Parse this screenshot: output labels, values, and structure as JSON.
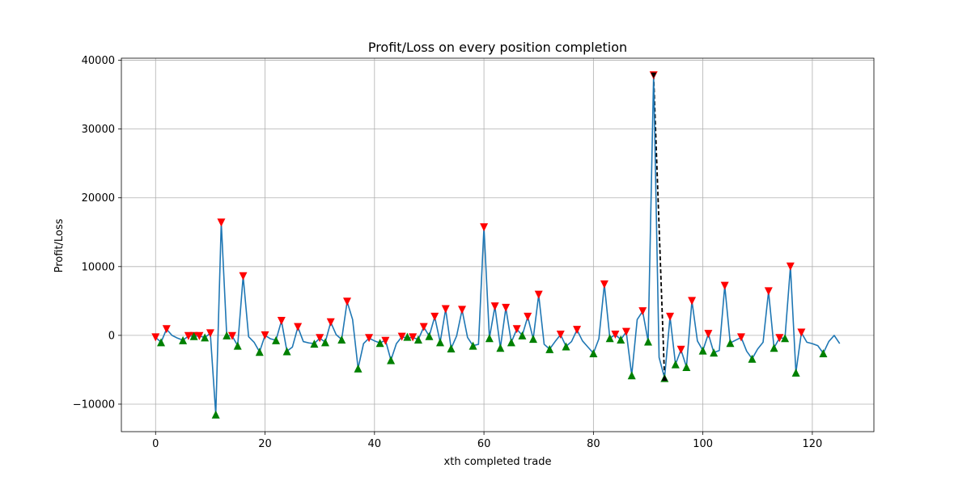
{
  "chart_data": {
    "type": "line",
    "title": "Profit/Loss on every position completion",
    "xlabel": "xth completed trade",
    "ylabel": "Profit/Loss",
    "xlim": [
      -6.25,
      131.25
    ],
    "ylim": [
      -14000,
      40300
    ],
    "xticks": [
      0,
      20,
      40,
      60,
      80,
      100,
      120
    ],
    "yticks": [
      -10000,
      0,
      10000,
      20000,
      30000,
      40000
    ],
    "ytick_labels": [
      "−10000",
      "0",
      "10000",
      "20000",
      "30000",
      "40000"
    ],
    "grid": true,
    "colors": {
      "line": "#1f77b4",
      "sell_marker": "#ff0000",
      "buy_marker": "#008000",
      "max_drawdown": "#000000"
    },
    "series": [
      {
        "values": [
          -300,
          -1000,
          900,
          0,
          -400,
          -700,
          -100,
          -100,
          -100,
          -300,
          300,
          -11500,
          16400,
          0,
          -100,
          -1500,
          8600,
          -200,
          -1000,
          -2400,
          0,
          -500,
          -700,
          2100,
          -2300,
          -1700,
          1200,
          -900,
          -1100,
          -1200,
          -400,
          -1000,
          1900,
          100,
          -600,
          4900,
          2300,
          -4800,
          -1200,
          -400,
          -800,
          -1100,
          -700,
          -3600,
          -1200,
          -200,
          -400,
          -300,
          -600,
          1200,
          -100,
          2700,
          -1000,
          3800,
          -1900,
          -100,
          3700,
          -300,
          -1500,
          -1300,
          15700,
          -400,
          4200,
          -1800,
          4000,
          -1000,
          900,
          0,
          2700,
          -500,
          5900,
          -1300,
          -2000,
          -900,
          100,
          -1600,
          -900,
          800,
          -800,
          -1700,
          -2600,
          -500,
          7400,
          -400,
          100,
          -600,
          500,
          -5800,
          2300,
          3500,
          -900,
          37800,
          -3200,
          -6200,
          2700,
          -4200,
          -2100,
          -4600,
          5000,
          -800,
          -2200,
          200,
          -2500,
          -2200,
          7200,
          -1100,
          -700,
          -300,
          -2300,
          -3400,
          -2000,
          -1000,
          6400,
          -1800,
          -400,
          -400,
          10000,
          -5400,
          400,
          -1000,
          -1200,
          -1500,
          -2600,
          -900,
          0,
          -1200
        ]
      }
    ],
    "sell_markers": {
      "x": [
        0,
        2,
        6,
        7,
        8,
        10,
        12,
        14,
        16,
        20,
        23,
        26,
        30,
        32,
        35,
        39,
        42,
        45,
        47,
        49,
        51,
        53,
        56,
        60,
        62,
        64,
        66,
        68,
        70,
        74,
        77,
        82,
        84,
        86,
        89,
        91,
        94,
        96,
        98,
        101,
        104,
        107,
        112,
        114,
        116,
        118
      ],
      "y": [
        -300,
        900,
        -100,
        -100,
        -100,
        300,
        16400,
        -100,
        8600,
        0,
        2100,
        1200,
        -400,
        1900,
        4900,
        -400,
        -800,
        -200,
        -300,
        1200,
        2700,
        3800,
        3700,
        15700,
        4200,
        4000,
        900,
        2700,
        5900,
        100,
        800,
        7400,
        100,
        500,
        3500,
        37800,
        2700,
        -2100,
        5000,
        200,
        7200,
        -300,
        6400,
        -400,
        10000,
        400
      ]
    },
    "buy_markers": {
      "x": [
        1,
        5,
        7,
        9,
        11,
        13,
        15,
        19,
        22,
        24,
        29,
        31,
        34,
        37,
        41,
        43,
        46,
        48,
        50,
        52,
        54,
        58,
        61,
        63,
        65,
        67,
        69,
        72,
        75,
        80,
        83,
        85,
        87,
        90,
        93,
        95,
        97,
        100,
        102,
        105,
        109,
        113,
        115,
        117,
        122
      ],
      "y": [
        -1000,
        -700,
        -100,
        -300,
        -11500,
        0,
        -1500,
        -2400,
        -700,
        -2300,
        -1200,
        -1000,
        -600,
        -4800,
        -1100,
        -3600,
        -200,
        -600,
        -100,
        -1000,
        -1900,
        -1500,
        -400,
        -1800,
        -1000,
        0,
        -500,
        -2000,
        -1600,
        -2600,
        -400,
        -600,
        -5800,
        -900,
        -6200,
        -4200,
        -4600,
        -2200,
        -2500,
        -1100,
        -3400,
        -1800,
        -400,
        -5400,
        -2600
      ]
    },
    "max_drawdown": {
      "x": [
        91,
        93
      ],
      "y": [
        37800,
        -6200
      ]
    }
  }
}
